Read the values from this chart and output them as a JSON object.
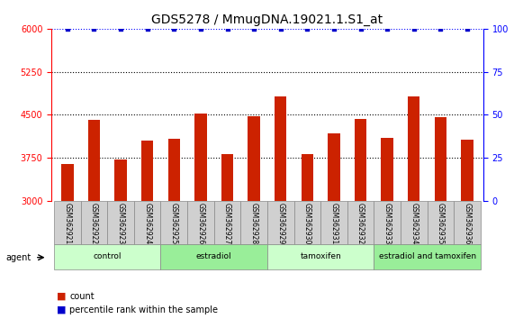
{
  "title": "GDS5278 / MmugDNA.19021.1.S1_at",
  "samples": [
    "GSM362921",
    "GSM362922",
    "GSM362923",
    "GSM362924",
    "GSM362925",
    "GSM362926",
    "GSM362927",
    "GSM362928",
    "GSM362929",
    "GSM362930",
    "GSM362931",
    "GSM362932",
    "GSM362933",
    "GSM362934",
    "GSM362935",
    "GSM362936"
  ],
  "bar_values": [
    3650,
    4420,
    3730,
    4050,
    4080,
    4530,
    3820,
    4480,
    4820,
    3820,
    4180,
    4430,
    4100,
    4820,
    4460,
    4060
  ],
  "percentile_values": [
    100,
    100,
    100,
    100,
    100,
    100,
    100,
    100,
    100,
    100,
    100,
    100,
    100,
    100,
    100,
    100
  ],
  "bar_color": "#cc2200",
  "percentile_color": "#0000cc",
  "ylim_left": [
    3000,
    6000
  ],
  "ylim_right": [
    0,
    100
  ],
  "yticks_left": [
    3000,
    3750,
    4500,
    5250,
    6000
  ],
  "yticks_right": [
    0,
    25,
    50,
    75,
    100
  ],
  "background_color": "white",
  "groups": [
    {
      "label": "control",
      "start": 0,
      "end": 3,
      "color": "#ccffcc"
    },
    {
      "label": "estradiol",
      "start": 4,
      "end": 7,
      "color": "#99ee99"
    },
    {
      "label": "tamoxifen",
      "start": 8,
      "end": 11,
      "color": "#ccffcc"
    },
    {
      "label": "estradiol and tamoxifen",
      "start": 12,
      "end": 15,
      "color": "#99ee99"
    }
  ],
  "agent_label": "agent",
  "legend_count_label": "count",
  "legend_percentile_label": "percentile rank within the sample",
  "title_fontsize": 10,
  "tick_label_fontsize": 7,
  "axis_label_fontsize": 7
}
